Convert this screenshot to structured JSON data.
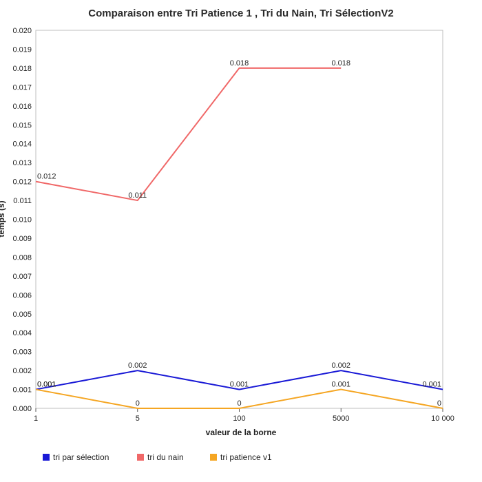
{
  "chart_data": {
    "type": "line",
    "title": "Comparaison entre Tri Patience 1 , Tri du Nain, Tri SélectionV2",
    "xlabel": "valeur de la borne",
    "ylabel": "temps (s)",
    "categories": [
      "1",
      "5",
      "100",
      "5000",
      "10 000"
    ],
    "ylim": [
      0,
      0.02
    ],
    "yticks": [
      "0.000",
      "0.001",
      "0.002",
      "0.003",
      "0.004",
      "0.005",
      "0.006",
      "0.007",
      "0.008",
      "0.009",
      "0.010",
      "0.011",
      "0.012",
      "0.013",
      "0.014",
      "0.015",
      "0.016",
      "0.017",
      "0.018",
      "0.019",
      "0.020"
    ],
    "legend_position": "bottom-left",
    "series": [
      {
        "name": "tri par sélection",
        "color": "#1a1ad6",
        "values": [
          0.001,
          0.002,
          0.001,
          0.002,
          0.001
        ],
        "labels": [
          "0.001",
          "0.002",
          "0.001",
          "0.002",
          "0.001"
        ]
      },
      {
        "name": "tri du nain",
        "color": "#f06868",
        "values": [
          0.012,
          0.011,
          0.018,
          0.018,
          null
        ],
        "labels": [
          "0.012",
          "0.011",
          "0.018",
          "0.018",
          null
        ]
      },
      {
        "name": "tri patience v1",
        "color": "#f5a623",
        "values": [
          0.001,
          0,
          0,
          0.001,
          0
        ],
        "labels": [
          "0.001",
          "0",
          "0",
          "0.001",
          "0"
        ]
      }
    ]
  }
}
